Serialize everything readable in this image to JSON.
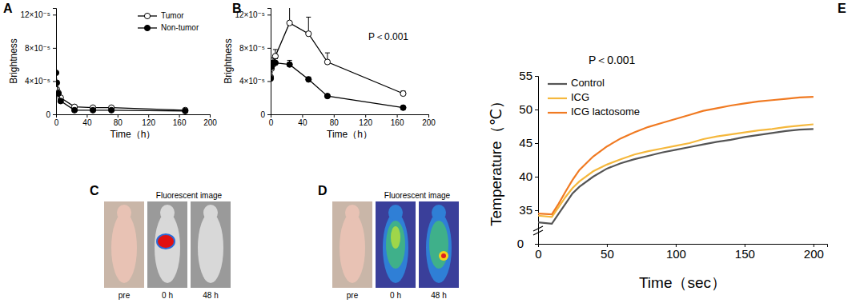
{
  "chart_data": [
    {
      "type": "line",
      "annotations": [
        "A"
      ],
      "xlabel": "Time（h）",
      "ylabel": "Brightness",
      "x": [
        0,
        1,
        3,
        6,
        24,
        48,
        72,
        168
      ],
      "xlim": [
        0,
        200
      ],
      "xticks": [
        0,
        40,
        80,
        120,
        160,
        200
      ],
      "ylim": [
        0,
        0.000128
      ],
      "yticks": [
        0,
        {
          "value": 4e-05,
          "label": "4×10⁻⁵"
        },
        {
          "value": 8e-05,
          "label": "8×10⁻⁵"
        },
        {
          "value": 0.00012,
          "label": "12×10⁻⁵"
        }
      ],
      "legend": "upper right",
      "series": [
        {
          "name": "Tumor",
          "color": "#000000",
          "marker": "open-circle",
          "values": [
            2.8e-05,
            3e-05,
            2.6e-05,
            2e-05,
            9e-06,
            8e-06,
            8e-06,
            5e-06
          ]
        },
        {
          "name": "Non-tumor",
          "color": "#000000",
          "marker": "circle",
          "values": [
            5e-05,
            3.8e-05,
            2.5e-05,
            1.6e-05,
            5e-06,
            5e-06,
            5e-06,
            4e-06
          ]
        }
      ]
    },
    {
      "type": "line",
      "annotations": [
        "B",
        "P＜0.001"
      ],
      "xlabel": "Time（h）",
      "ylabel": "Brightness",
      "x": [
        0,
        1,
        3,
        6,
        24,
        48,
        72,
        168
      ],
      "xlim": [
        0,
        200
      ],
      "xticks": [
        0,
        40,
        80,
        120,
        160,
        200
      ],
      "ylim": [
        0,
        0.000128
      ],
      "yticks": [
        0,
        {
          "value": 4e-05,
          "label": "4×10⁻⁵"
        },
        {
          "value": 8e-05,
          "label": "8×10⁻⁵"
        },
        {
          "value": 0.00012,
          "label": "12×10⁻⁵"
        }
      ],
      "series": [
        {
          "color": "#000000",
          "marker": "open-circle",
          "values": [
            4.5e-05,
            5.5e-05,
            6e-05,
            7e-05,
            0.00011,
            9.7e-05,
            6.3e-05,
            2.5e-05
          ],
          "errors": [
            5e-06,
            1e-05,
            8e-06,
            8e-06,
            3.3e-05,
            2e-05,
            1.1e-05,
            3e-06
          ]
        },
        {
          "color": "#000000",
          "marker": "circle",
          "values": [
            4.3e-05,
            5.7e-05,
            6.2e-05,
            6.2e-05,
            6e-05,
            4.2e-05,
            2.2e-05,
            8e-06
          ],
          "errors": [
            4e-06,
            5e-06,
            3e-06,
            5e-06,
            5e-06,
            3e-06,
            2e-06,
            1e-06
          ]
        }
      ]
    },
    {
      "type": "line",
      "annotations": [
        "E",
        "P＜0.001",
        "0"
      ],
      "xlabel": "Time（sec）",
      "ylabel": "Temperature（℃）",
      "x": [
        0,
        10,
        15,
        20,
        25,
        30,
        40,
        50,
        60,
        70,
        80,
        90,
        100,
        110,
        120,
        130,
        140,
        150,
        160,
        170,
        180,
        190,
        200
      ],
      "xlim": [
        0,
        210
      ],
      "xticks": [
        0,
        50,
        100,
        150,
        200
      ],
      "ylim": [
        30,
        55
      ],
      "yticks": [
        35,
        40,
        45,
        50,
        55
      ],
      "legend": "upper left",
      "series": [
        {
          "name": "Control",
          "color": "#555555",
          "values": [
            33.2,
            33.0,
            34.5,
            36.0,
            37.5,
            38.5,
            40.0,
            41.2,
            42.0,
            42.6,
            43.1,
            43.6,
            44.0,
            44.4,
            44.8,
            45.2,
            45.5,
            45.9,
            46.2,
            46.5,
            46.8,
            47.0,
            47.1
          ]
        },
        {
          "name": "ICG",
          "color": "#f5b83d",
          "values": [
            34.2,
            34.0,
            35.5,
            37.0,
            38.3,
            39.3,
            40.8,
            41.8,
            42.6,
            43.3,
            43.8,
            44.2,
            44.6,
            45.0,
            45.6,
            46.0,
            46.3,
            46.6,
            46.9,
            47.1,
            47.4,
            47.6,
            47.8
          ]
        },
        {
          "name": "ICG lactosome",
          "color": "#f07a22",
          "values": [
            34.5,
            34.4,
            36.0,
            37.8,
            39.5,
            41.0,
            43.0,
            44.5,
            45.7,
            46.6,
            47.4,
            48.0,
            48.6,
            49.2,
            49.8,
            50.2,
            50.6,
            50.9,
            51.2,
            51.4,
            51.6,
            51.8,
            51.9
          ]
        }
      ]
    }
  ],
  "images": [
    {
      "label": "C",
      "title": "Fluorescent image",
      "frames": [
        "pre",
        "0 h",
        "48 h"
      ]
    },
    {
      "label": "D",
      "title": "Fluorescent image",
      "frames": [
        "pre",
        "0 h",
        "48 h"
      ]
    }
  ]
}
